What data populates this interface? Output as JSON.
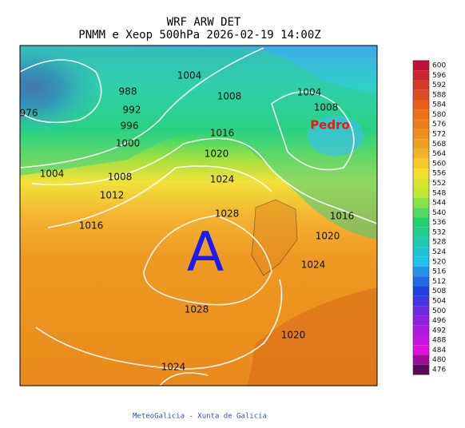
{
  "header": {
    "title": "WRF ARW DET",
    "subtitle": "PNMM e Xeop 500hPa 2026-02-19 14:00Z"
  },
  "map": {
    "isobar_labels": [
      "976",
      "988",
      "992",
      "996",
      "1000",
      "1004",
      "1008",
      "1012",
      "1016",
      "1004",
      "1008",
      "1016",
      "1020",
      "1024",
      "1028",
      "1028",
      "1024",
      "1004",
      "1008",
      "1016",
      "1020",
      "1024",
      "1020"
    ],
    "storm_name": "Pedro",
    "high_marker": "A"
  },
  "colorbar": {
    "ticks": [
      600,
      596,
      592,
      588,
      584,
      580,
      576,
      572,
      568,
      564,
      560,
      556,
      552,
      548,
      544,
      540,
      536,
      532,
      528,
      524,
      520,
      516,
      512,
      508,
      504,
      500,
      496,
      492,
      488,
      484,
      480,
      476
    ]
  },
  "footer": {
    "credit": "MeteoGalicia - Xunta de Galicia"
  }
}
